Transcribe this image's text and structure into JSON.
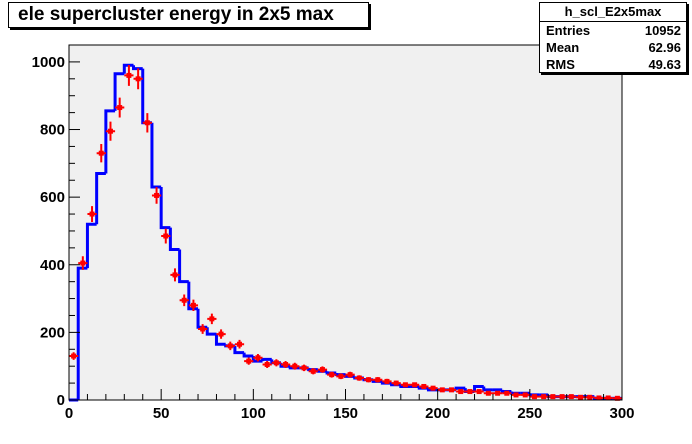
{
  "title": "ele supercluster energy in 2x5 max",
  "stats": {
    "name": "h_scl_E2x5max",
    "rows": [
      {
        "label": "Entries",
        "value": "10952"
      },
      {
        "label": "Mean",
        "value": "62.96"
      },
      {
        "label": "RMS",
        "value": "49.63"
      }
    ]
  },
  "colors": {
    "histogram_line": "#0000ff",
    "data_points": "#ff0000",
    "frame_fill": "#f0f0f0",
    "axis": "#000000"
  },
  "chart_data": {
    "type": "line",
    "xlim": [
      0,
      300
    ],
    "ylim": [
      0,
      1050
    ],
    "xticks": [
      0,
      50,
      100,
      150,
      200,
      250,
      300
    ],
    "yticks": [
      0,
      200,
      400,
      600,
      800,
      1000
    ],
    "bin_width": 5,
    "series": [
      {
        "style": "histogram",
        "values": [
          0,
          390,
          520,
          670,
          855,
          965,
          990,
          980,
          820,
          630,
          510,
          445,
          350,
          270,
          215,
          195,
          165,
          160,
          140,
          130,
          115,
          120,
          110,
          100,
          95,
          95,
          90,
          85,
          80,
          75,
          70,
          65,
          60,
          55,
          50,
          45,
          40,
          40,
          35,
          30,
          30,
          30,
          35,
          25,
          40,
          30,
          30,
          25,
          20,
          20,
          15,
          15,
          10,
          10,
          10,
          10,
          10,
          5,
          5,
          5
        ]
      },
      {
        "style": "points_with_errors",
        "values": [
          130,
          405,
          550,
          730,
          795,
          865,
          960,
          950,
          820,
          605,
          485,
          370,
          295,
          280,
          210,
          240,
          195,
          160,
          165,
          115,
          125,
          105,
          110,
          105,
          100,
          95,
          85,
          90,
          75,
          70,
          75,
          65,
          60,
          60,
          55,
          50,
          45,
          45,
          40,
          35,
          30,
          30,
          25,
          25,
          25,
          20,
          20,
          20,
          15,
          15,
          10,
          10,
          10,
          10,
          10,
          8,
          8,
          6,
          6,
          5
        ]
      }
    ]
  }
}
